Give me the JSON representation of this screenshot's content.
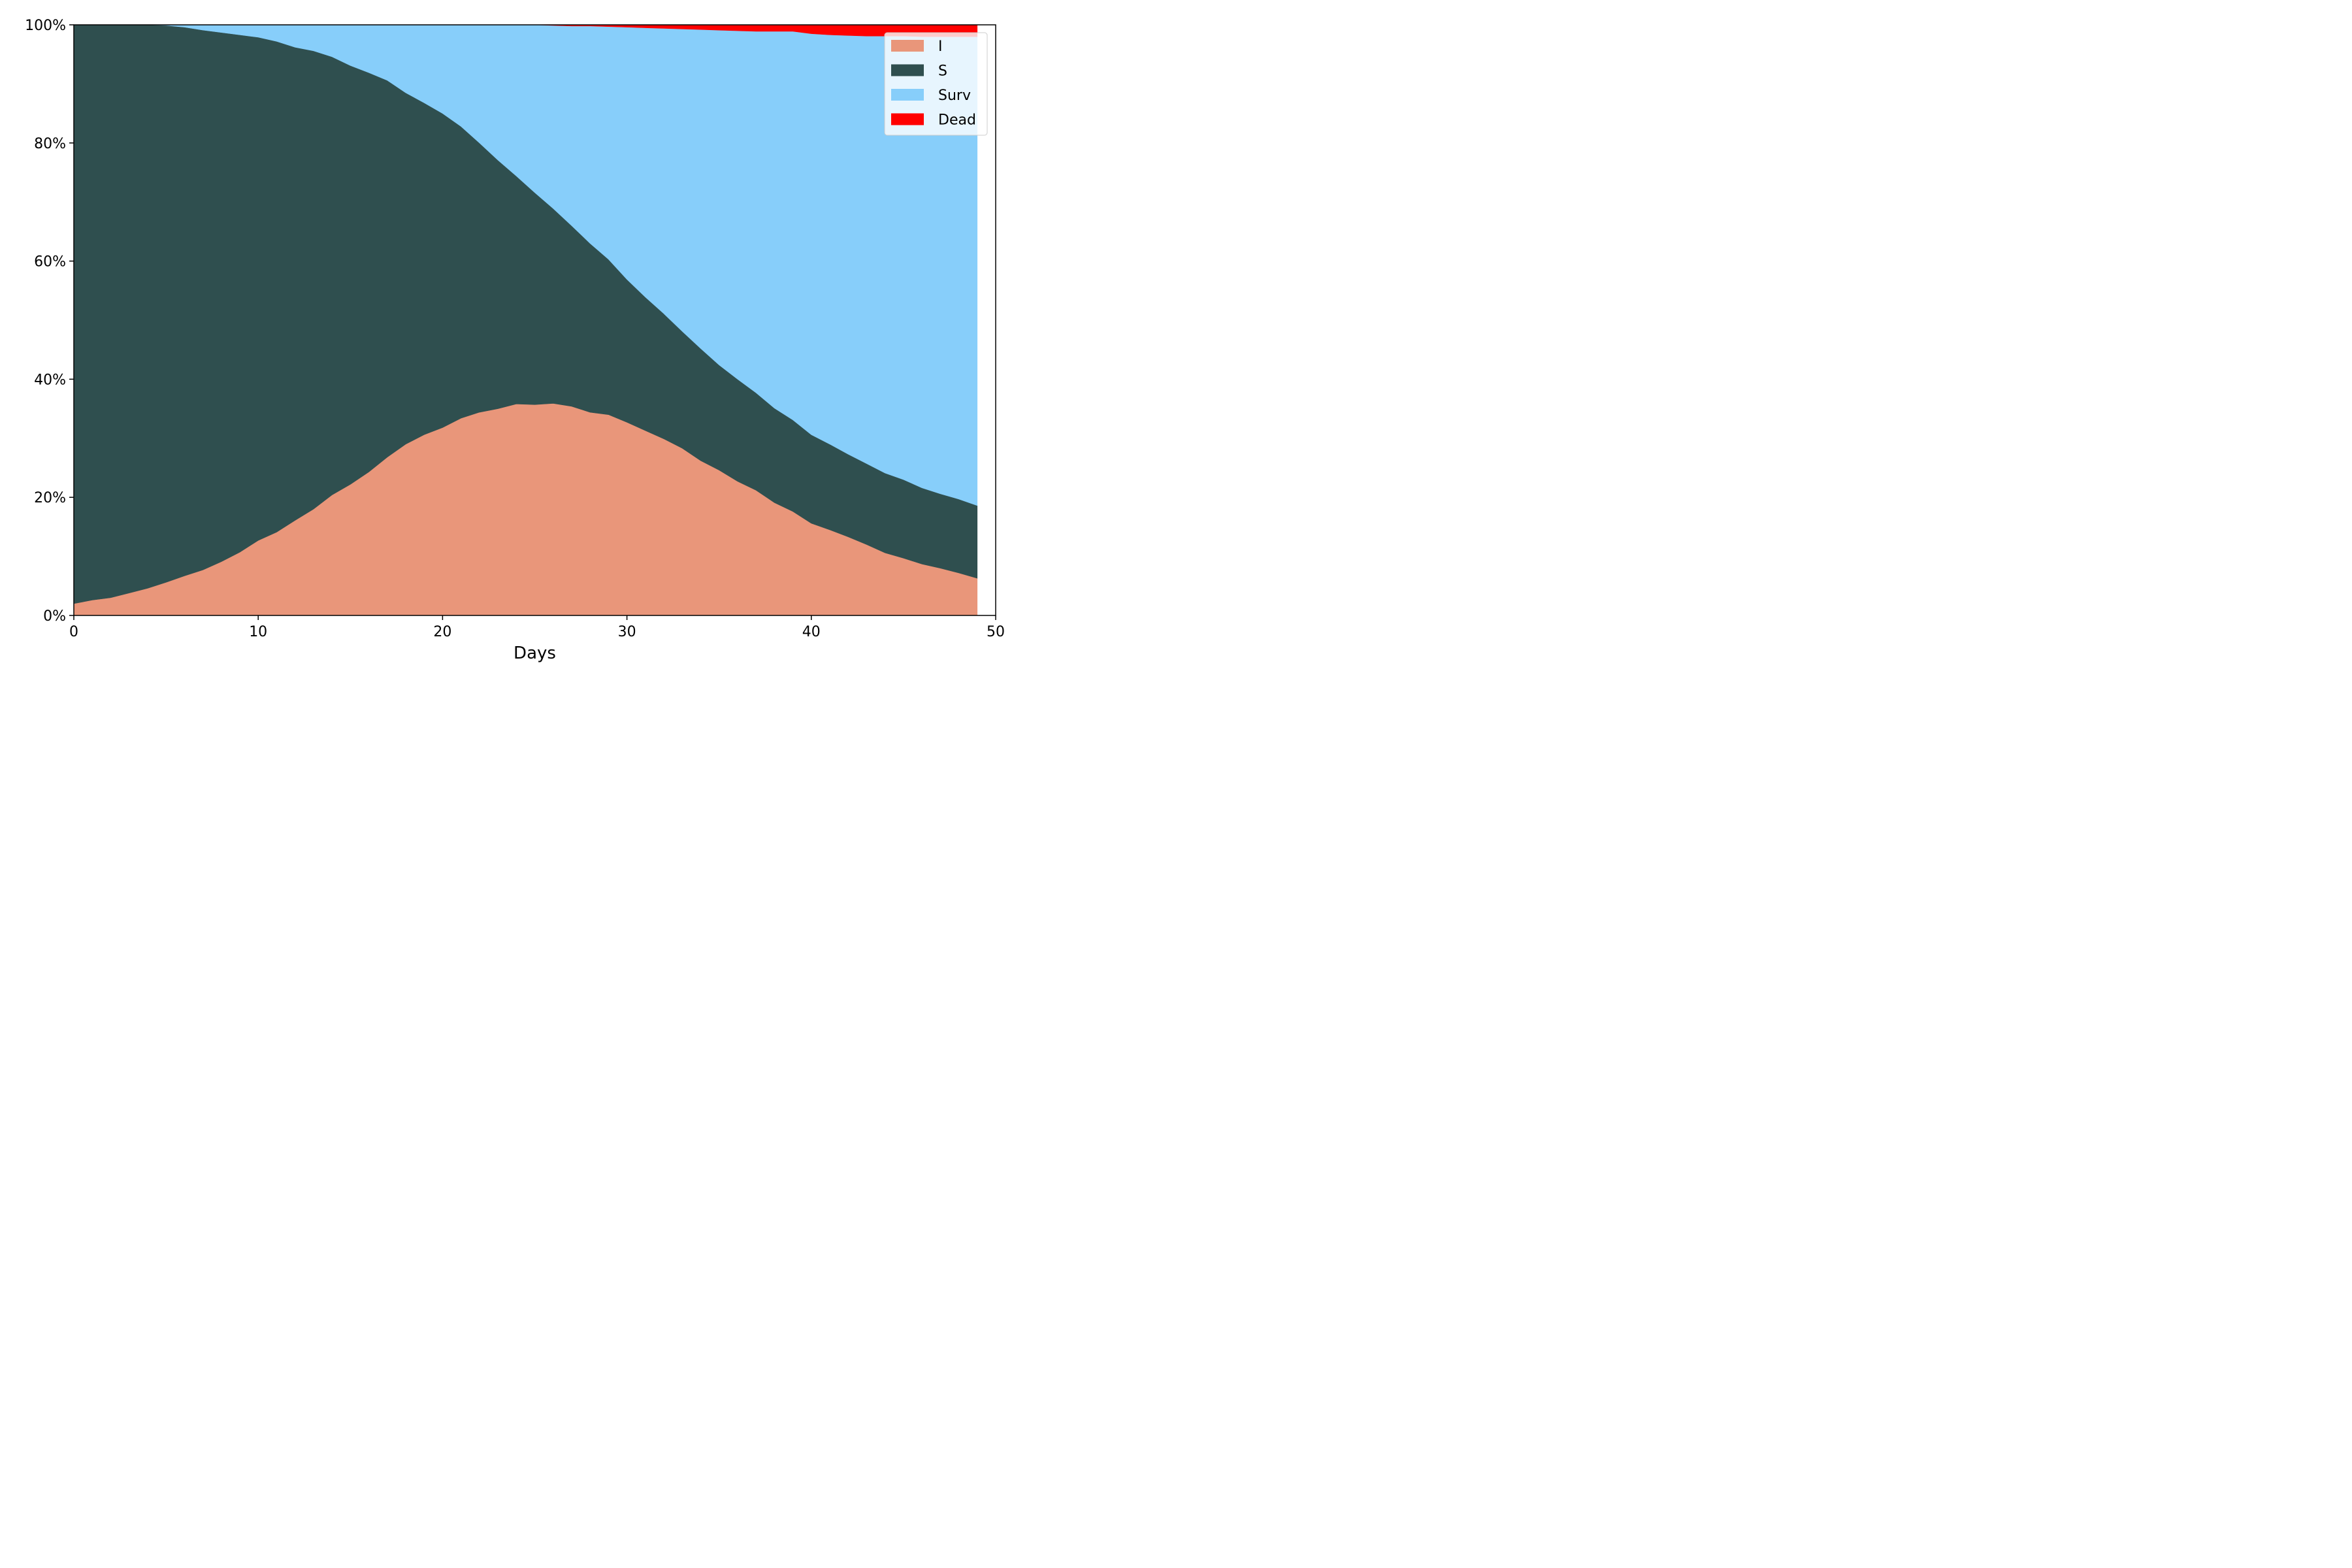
{
  "chart_data": {
    "type": "area",
    "stacked": true,
    "normalized": true,
    "xlabel": "Days",
    "ylabel": "",
    "xlim": [
      0,
      50
    ],
    "ylim": [
      0,
      100
    ],
    "x_ticks": [
      0,
      10,
      20,
      30,
      40,
      50
    ],
    "y_ticks": [
      "0%",
      "20%",
      "40%",
      "60%",
      "80%",
      "100%"
    ],
    "y_tick_values": [
      0,
      20,
      40,
      60,
      80,
      100
    ],
    "grid": false,
    "legend_position": "top-right",
    "legend": [
      {
        "label": "I",
        "color": "#e9967a"
      },
      {
        "label": "S",
        "color": "#2f4f4f"
      },
      {
        "label": "Surv",
        "color": "#87cefa"
      },
      {
        "label": "Dead",
        "color": "#ff0000"
      }
    ],
    "x": [
      0,
      1,
      2,
      3,
      4,
      5,
      6,
      7,
      8,
      9,
      10,
      11,
      12,
      13,
      14,
      15,
      16,
      17,
      18,
      19,
      20,
      21,
      22,
      23,
      24,
      25,
      26,
      27,
      28,
      29,
      30,
      31,
      32,
      33,
      34,
      35,
      36,
      37,
      38,
      39,
      40,
      41,
      42,
      43,
      44,
      45,
      46,
      47,
      48,
      49
    ],
    "series": [
      {
        "name": "I",
        "color": "#e9967a",
        "values": [
          2.0,
          2.6,
          3.0,
          3.8,
          4.6,
          5.6,
          6.7,
          7.7,
          9.1,
          10.7,
          12.7,
          14.1,
          16.1,
          18.0,
          20.4,
          22.2,
          24.3,
          26.8,
          29.0,
          30.6,
          31.8,
          33.4,
          34.4,
          35.0,
          35.8,
          35.7,
          35.9,
          35.4,
          34.4,
          34.0,
          32.7,
          31.3,
          29.9,
          28.3,
          26.2,
          24.6,
          22.7,
          21.2,
          19.1,
          17.6,
          15.6,
          14.5,
          13.3,
          12.0,
          10.6,
          9.7,
          8.7,
          8.0,
          7.2,
          6.3
        ]
      },
      {
        "name": "S",
        "color": "#2f4f4f",
        "values": [
          98.0,
          97.4,
          97.0,
          96.2,
          95.4,
          94.3,
          92.9,
          91.4,
          89.6,
          87.6,
          85.2,
          83.1,
          80.1,
          77.6,
          74.2,
          70.9,
          67.6,
          63.8,
          59.5,
          56.2,
          53.2,
          49.4,
          45.6,
          42.1,
          38.6,
          35.9,
          33.0,
          30.6,
          28.6,
          26.3,
          24.2,
          22.6,
          21.2,
          19.8,
          19.0,
          17.8,
          17.3,
          16.5,
          16.0,
          15.5,
          15.0,
          14.5,
          14.0,
          13.7,
          13.5,
          13.3,
          12.9,
          12.6,
          12.5,
          12.3
        ]
      },
      {
        "name": "Surv",
        "color": "#87cefa",
        "values": [
          0.0,
          0.0,
          0.0,
          0.0,
          0.0,
          0.1,
          0.4,
          0.9,
          1.3,
          1.7,
          2.1,
          2.8,
          3.8,
          4.4,
          5.4,
          6.9,
          8.1,
          9.4,
          11.5,
          13.2,
          15.0,
          17.2,
          20.0,
          22.9,
          25.6,
          28.4,
          31.0,
          33.8,
          36.8,
          39.4,
          42.7,
          45.6,
          48.3,
          51.2,
          54.0,
          56.7,
          59.0,
          61.2,
          63.8,
          65.8,
          67.9,
          69.3,
          70.9,
          72.4,
          74.0,
          75.1,
          76.4,
          77.4,
          78.3,
          79.4
        ]
      },
      {
        "name": "Dead",
        "color": "#ff0000",
        "values": [
          0.0,
          0.0,
          0.0,
          0.0,
          0.0,
          0.0,
          0.0,
          0.0,
          0.0,
          0.0,
          0.0,
          0.0,
          0.0,
          0.0,
          0.0,
          0.0,
          0.0,
          0.0,
          0.0,
          0.0,
          0.0,
          0.0,
          0.0,
          0.0,
          0.0,
          0.0,
          0.1,
          0.2,
          0.2,
          0.3,
          0.4,
          0.5,
          0.6,
          0.7,
          0.8,
          0.9,
          1.0,
          1.1,
          1.1,
          1.1,
          1.5,
          1.7,
          1.8,
          1.9,
          1.9,
          1.9,
          2.0,
          2.0,
          2.0,
          2.0
        ]
      }
    ]
  }
}
